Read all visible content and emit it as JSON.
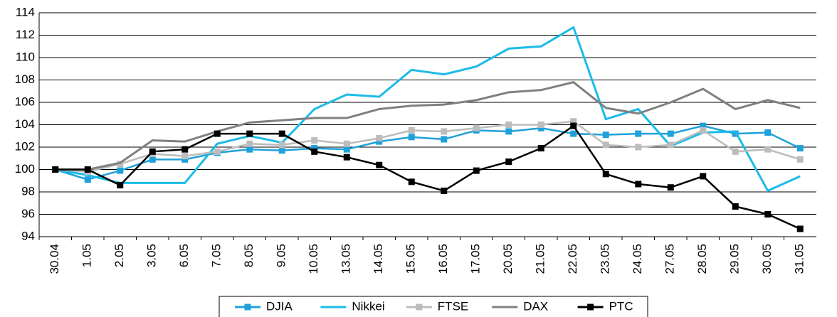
{
  "chart_data": {
    "type": "line",
    "categories": [
      "30.04",
      "1.05",
      "2.05",
      "3.05",
      "6.05",
      "7.05",
      "8.05",
      "9.05",
      "10.05",
      "13.05",
      "14.05",
      "15.05",
      "16.05",
      "17.05",
      "20.05",
      "21.05",
      "22.05",
      "23.05",
      "24.05",
      "27.05",
      "28.05",
      "29.05",
      "30.05",
      "31.05"
    ],
    "series": [
      {
        "name": "DJIA",
        "color": "#1ea1da",
        "marker": true,
        "values": [
          100,
          99.1,
          99.9,
          100.9,
          100.9,
          101.5,
          101.8,
          101.7,
          101.9,
          101.8,
          102.5,
          102.9,
          102.7,
          103.5,
          103.4,
          103.7,
          103.2,
          103.1,
          103.2,
          103.2,
          103.9,
          103.2,
          103.3,
          101.9
        ]
      },
      {
        "name": "Nikkei",
        "color": "#1cbbe8",
        "marker": false,
        "values": [
          100,
          99.5,
          98.8,
          98.8,
          98.8,
          102.3,
          103.0,
          102.4,
          105.4,
          106.7,
          106.5,
          108.9,
          108.5,
          109.2,
          110.8,
          111.0,
          112.7,
          104.5,
          105.4,
          102.1,
          103.3,
          103.4,
          98.1,
          99.4
        ]
      },
      {
        "name": "FTSE",
        "color": "#bcbcbc",
        "marker": true,
        "values": [
          100,
          99.8,
          100.5,
          101.4,
          101.2,
          101.6,
          102.3,
          102.2,
          102.6,
          102.3,
          102.8,
          103.5,
          103.4,
          103.7,
          104.0,
          104.0,
          104.3,
          102.2,
          102.0,
          102.2,
          103.5,
          101.6,
          101.8,
          100.9
        ]
      },
      {
        "name": "DAX",
        "color": "#808080",
        "marker": false,
        "values": [
          100,
          100.0,
          100.6,
          102.6,
          102.5,
          103.4,
          104.2,
          104.4,
          104.6,
          104.6,
          105.4,
          105.7,
          105.8,
          106.2,
          106.9,
          107.1,
          107.8,
          105.5,
          105.0,
          106.0,
          107.2,
          105.4,
          106.2,
          105.5
        ]
      },
      {
        "name": "PTC",
        "color": "#000000",
        "marker": true,
        "values": [
          100,
          100,
          98.6,
          101.6,
          101.8,
          103.2,
          103.2,
          103.2,
          101.6,
          101.1,
          100.4,
          98.9,
          98.1,
          99.9,
          100.7,
          101.9,
          103.9,
          99.6,
          98.7,
          98.4,
          99.4,
          96.7,
          96.0,
          94.7
        ]
      }
    ],
    "ylim": [
      94,
      114
    ],
    "yticks": [
      94,
      96,
      98,
      100,
      102,
      104,
      106,
      108,
      110,
      112,
      114
    ],
    "grid": true,
    "legend": "bottom"
  }
}
